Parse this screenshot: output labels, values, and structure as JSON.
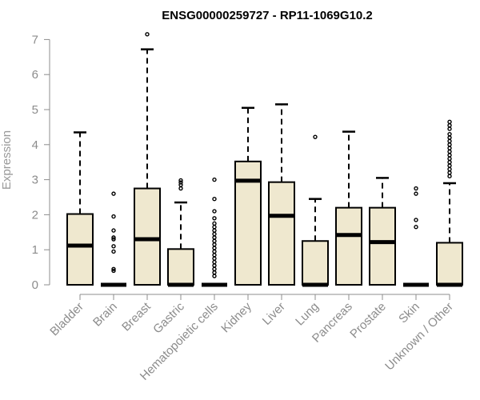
{
  "chart_data": {
    "type": "boxplot",
    "title": "ENSG00000259727 - RP11-1069G10.2",
    "ylabel": "Expression",
    "xlabel": "",
    "ylim": [
      0,
      7.2
    ],
    "yticks": [
      0,
      1,
      2,
      3,
      4,
      5,
      6,
      7
    ],
    "grid": false,
    "colors": {
      "box_fill": "#efe8cf",
      "stroke": "#000000",
      "axis": "#8c8c8c"
    },
    "categories": [
      "Bladder",
      "Brain",
      "Breast",
      "Gastric",
      "Hematopoietic cells",
      "Kidney",
      "Liver",
      "Lung",
      "Pancreas",
      "Prostate",
      "Skin",
      "Unknown / Other"
    ],
    "boxes": [
      {
        "category": "Bladder",
        "min": 0,
        "q1": 0,
        "median": 1.12,
        "q3": 2.02,
        "max": 4.35,
        "outliers": []
      },
      {
        "category": "Brain",
        "min": 0,
        "q1": 0,
        "median": 0,
        "q3": 0,
        "max": 0,
        "outliers": [
          0.4,
          0.45,
          0.95,
          1.1,
          1.3,
          1.35,
          1.55,
          1.95,
          2.6
        ]
      },
      {
        "category": "Breast",
        "min": 0,
        "q1": 0,
        "median": 1.3,
        "q3": 2.75,
        "max": 6.72,
        "outliers": [
          7.15
        ]
      },
      {
        "category": "Gastric",
        "min": 0,
        "q1": 0,
        "median": 0,
        "q3": 1.02,
        "max": 2.35,
        "outliers": [
          2.75,
          2.85,
          2.92,
          2.98
        ]
      },
      {
        "category": "Hematopoietic cells",
        "min": 0,
        "q1": 0,
        "median": 0,
        "q3": 0,
        "max": 0,
        "outliers": [
          0.25,
          0.35,
          0.45,
          0.55,
          0.65,
          0.75,
          0.85,
          0.95,
          1.05,
          1.15,
          1.25,
          1.35,
          1.45,
          1.55,
          1.65,
          1.75,
          1.9,
          2.1,
          2.45,
          3.0
        ]
      },
      {
        "category": "Kidney",
        "min": 0,
        "q1": 0,
        "median": 2.97,
        "q3": 3.52,
        "max": 5.05,
        "outliers": []
      },
      {
        "category": "Liver",
        "min": 0,
        "q1": 0,
        "median": 1.97,
        "q3": 2.93,
        "max": 5.15,
        "outliers": []
      },
      {
        "category": "Lung",
        "min": 0,
        "q1": 0,
        "median": 0,
        "q3": 1.25,
        "max": 2.45,
        "outliers": [
          4.22
        ]
      },
      {
        "category": "Pancreas",
        "min": 0,
        "q1": 0,
        "median": 1.42,
        "q3": 2.2,
        "max": 4.37,
        "outliers": []
      },
      {
        "category": "Prostate",
        "min": 0,
        "q1": 0,
        "median": 1.22,
        "q3": 2.2,
        "max": 3.05,
        "outliers": []
      },
      {
        "category": "Skin",
        "min": 0,
        "q1": 0,
        "median": 0,
        "q3": 0,
        "max": 0,
        "outliers": [
          1.65,
          1.85,
          2.6,
          2.75
        ]
      },
      {
        "category": "Unknown / Other",
        "min": 0,
        "q1": 0,
        "median": 0,
        "q3": 1.2,
        "max": 2.9,
        "outliers": [
          3.1,
          3.2,
          3.3,
          3.4,
          3.5,
          3.6,
          3.7,
          3.8,
          3.9,
          4.0,
          4.1,
          4.2,
          4.3,
          4.45,
          4.55,
          4.65
        ]
      }
    ]
  }
}
